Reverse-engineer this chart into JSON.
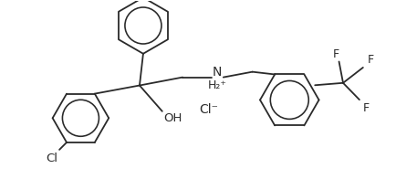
{
  "background_color": "#ffffff",
  "line_color": "#2a2a2a",
  "text_color": "#2a2a2a",
  "figsize": [
    4.35,
    1.96
  ],
  "dpi": 100,
  "bond_lw": 1.3,
  "labels": {
    "Cl_atom": "Cl",
    "OH": "OH",
    "N": "N",
    "H2plus": "H₂⁺",
    "Cl_ion": "Cl⁻",
    "F1": "F",
    "F2": "F",
    "F3": "F"
  },
  "xlim": [
    0.0,
    8.7
  ],
  "ylim": [
    0.0,
    3.92
  ]
}
